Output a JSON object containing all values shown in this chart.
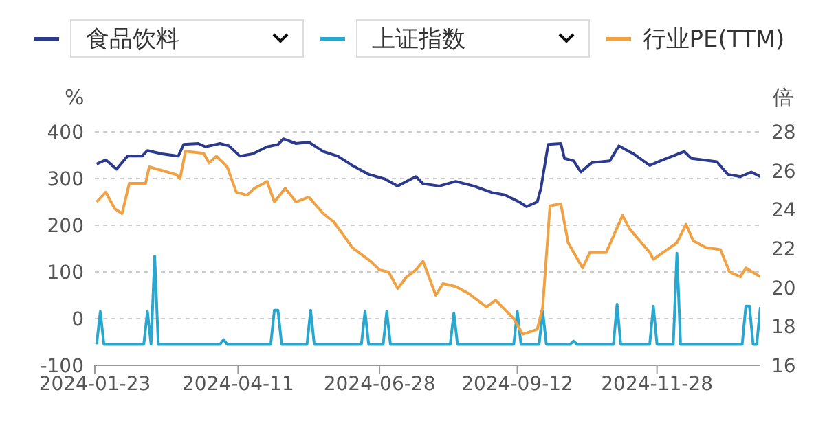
{
  "chart_data": {
    "type": "line",
    "ylabel": "%",
    "y2label": "倍",
    "legend": "top",
    "grid": "y",
    "line_style": "solid",
    "marker": "none",
    "xlim": [
      "2024-01-23",
      "2025-01-24"
    ],
    "xticks": [
      "2024-01-23",
      "2024-04-11",
      "2024-06-28",
      "2024-09-12",
      "2024-11-28"
    ],
    "ylim": [
      -100,
      400
    ],
    "yticks": [
      -100,
      0,
      100,
      200,
      300,
      400
    ],
    "y2lim": [
      16,
      28
    ],
    "y2ticks": [
      16,
      18,
      20,
      22,
      24,
      26,
      28
    ],
    "series": [
      {
        "name": "食品饮料",
        "color": "#2b3a8c",
        "x": [
          "2024-01-24",
          "2024-01-29",
          "2024-02-04",
          "2024-02-10",
          "2024-02-18",
          "2024-02-21",
          "2024-02-29",
          "2024-03-09",
          "2024-03-12",
          "2024-03-20",
          "2024-03-24",
          "2024-04-01",
          "2024-04-06",
          "2024-04-12",
          "2024-04-19",
          "2024-04-27",
          "2024-05-03",
          "2024-05-06",
          "2024-05-13",
          "2024-05-20",
          "2024-05-28",
          "2024-06-05",
          "2024-06-13",
          "2024-06-22",
          "2024-07-01",
          "2024-07-08",
          "2024-07-13",
          "2024-07-18",
          "2024-07-22",
          "2024-07-31",
          "2024-08-09",
          "2024-08-19",
          "2024-08-29",
          "2024-09-05",
          "2024-09-13",
          "2024-09-17",
          "2024-09-23",
          "2024-09-25",
          "2024-09-29",
          "2024-10-06",
          "2024-10-08",
          "2024-10-13",
          "2024-10-17",
          "2024-10-23",
          "2024-11-02",
          "2024-11-07",
          "2024-11-15",
          "2024-11-24",
          "2024-11-30",
          "2024-12-13",
          "2024-12-17",
          "2024-12-31",
          "2025-01-06",
          "2025-01-13",
          "2025-01-19",
          "2025-01-24"
        ],
        "values": [
          331,
          340,
          320,
          348,
          348,
          360,
          353,
          348,
          373,
          375,
          368,
          375,
          370,
          348,
          353,
          368,
          373,
          385,
          375,
          378,
          358,
          348,
          328,
          309,
          299,
          284,
          294,
          304,
          289,
          284,
          294,
          284,
          270,
          265,
          250,
          240,
          250,
          279,
          373,
          375,
          343,
          338,
          314,
          334,
          338,
          370,
          353,
          328,
          338,
          358,
          343,
          336,
          309,
          304,
          314,
          304
        ]
      },
      {
        "name": "上证指数",
        "color": "#2aa7cf",
        "x": [
          "2024-01-24",
          "2024-01-26",
          "2024-01-28",
          "2024-02-19",
          "2024-02-21",
          "2024-02-23",
          "2024-02-25",
          "2024-02-27",
          "2024-04-01",
          "2024-04-03",
          "2024-04-05",
          "2024-04-29",
          "2024-05-01",
          "2024-05-03",
          "2024-05-05",
          "2024-05-19",
          "2024-05-21",
          "2024-05-23",
          "2024-06-18",
          "2024-06-20",
          "2024-06-22",
          "2024-06-30",
          "2024-07-02",
          "2024-07-04",
          "2024-08-06",
          "2024-08-08",
          "2024-08-10",
          "2024-09-10",
          "2024-09-12",
          "2024-09-14",
          "2024-09-24",
          "2024-09-26",
          "2024-09-28",
          "2024-10-11",
          "2024-10-13",
          "2024-10-15",
          "2024-11-04",
          "2024-11-06",
          "2024-11-08",
          "2024-11-24",
          "2024-11-26",
          "2024-11-28",
          "2024-12-07",
          "2024-12-09",
          "2024-12-11",
          "2025-01-14",
          "2025-01-16",
          "2025-01-18",
          "2025-01-20",
          "2025-01-22",
          "2025-01-24"
        ],
        "values": [
          -55,
          15,
          -55,
          -55,
          15,
          -55,
          134,
          -55,
          -55,
          -45,
          -55,
          -55,
          18,
          18,
          -55,
          -55,
          18,
          -55,
          -55,
          16,
          -55,
          -55,
          16,
          -55,
          -55,
          12,
          -55,
          -55,
          15,
          -55,
          -55,
          16,
          -55,
          -55,
          -48,
          -55,
          -55,
          31,
          -55,
          -55,
          27,
          -55,
          -55,
          140,
          -55,
          -55,
          27,
          27,
          -55,
          -55,
          25
        ]
      },
      {
        "name": "行业PE(TTM)",
        "color": "#f0a143",
        "axis": "y2",
        "x": [
          "2024-01-24",
          "2024-01-29",
          "2024-02-03",
          "2024-02-07",
          "2024-02-11",
          "2024-02-20",
          "2024-02-22",
          "2024-03-08",
          "2024-03-10",
          "2024-03-13",
          "2024-03-23",
          "2024-03-26",
          "2024-03-30",
          "2024-04-05",
          "2024-04-10",
          "2024-04-16",
          "2024-04-20",
          "2024-04-27",
          "2024-05-01",
          "2024-05-07",
          "2024-05-13",
          "2024-05-20",
          "2024-05-28",
          "2024-06-03",
          "2024-06-13",
          "2024-06-23",
          "2024-06-28",
          "2024-07-03",
          "2024-07-08",
          "2024-07-13",
          "2024-07-18",
          "2024-07-22",
          "2024-07-29",
          "2024-08-02",
          "2024-08-09",
          "2024-08-16",
          "2024-08-26",
          "2024-08-31",
          "2024-09-10",
          "2024-09-15",
          "2024-09-23",
          "2024-09-26",
          "2024-09-30",
          "2024-10-06",
          "2024-10-10",
          "2024-10-18",
          "2024-10-22",
          "2024-10-31",
          "2024-11-09",
          "2024-11-13",
          "2024-11-24",
          "2024-11-26",
          "2024-12-09",
          "2024-12-14",
          "2024-12-18",
          "2024-12-25",
          "2025-01-02",
          "2025-01-07",
          "2025-01-13",
          "2025-01-16",
          "2025-01-24"
        ],
        "values": [
          24.4,
          24.9,
          24.05,
          23.8,
          25.35,
          25.35,
          26.2,
          25.8,
          25.6,
          27.0,
          26.9,
          26.4,
          26.75,
          26.2,
          24.9,
          24.75,
          25.1,
          25.45,
          24.4,
          25.1,
          24.4,
          24.65,
          23.8,
          23.35,
          22.05,
          21.35,
          20.9,
          20.8,
          19.95,
          20.55,
          20.9,
          21.35,
          19.6,
          20.2,
          20.05,
          19.7,
          19.0,
          19.35,
          18.4,
          17.6,
          17.85,
          19.0,
          24.2,
          24.3,
          22.3,
          21.0,
          21.8,
          21.8,
          23.7,
          23.0,
          21.8,
          21.45,
          22.3,
          23.25,
          22.4,
          22.05,
          21.95,
          20.8,
          20.55,
          21.0,
          20.55
        ]
      }
    ]
  }
}
